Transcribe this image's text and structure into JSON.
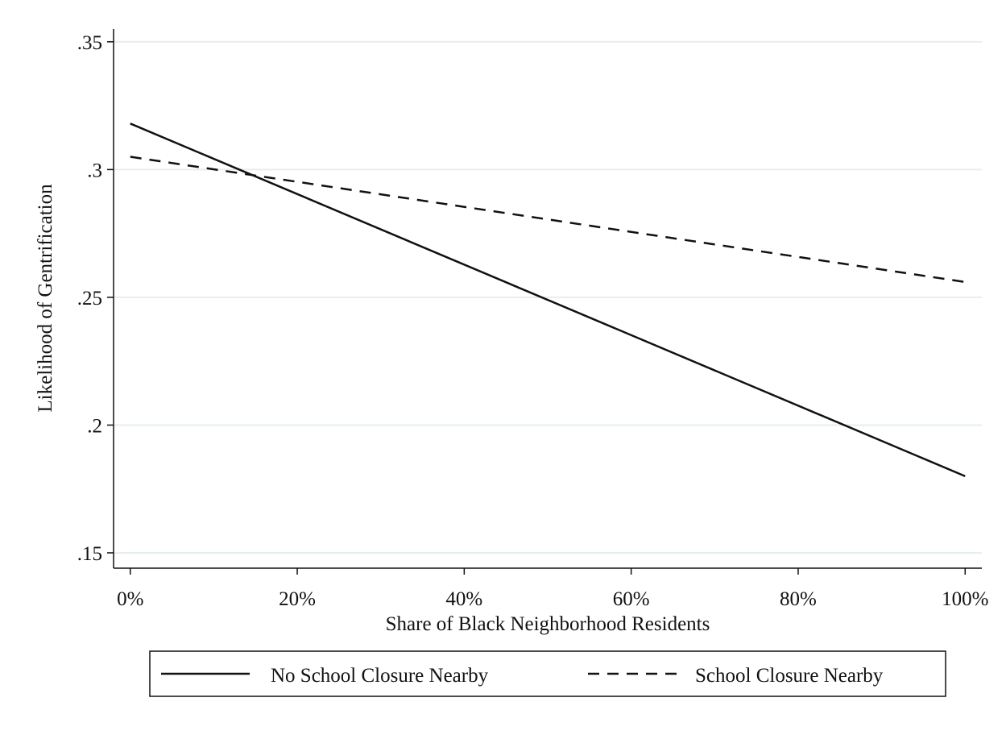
{
  "chart_data": {
    "type": "line",
    "xlabel": "Share of Black Neighborhood Residents",
    "ylabel": "Likelihood of Gentrification",
    "x_ticks": [
      "0%",
      "20%",
      "40%",
      "60%",
      "80%",
      "100%"
    ],
    "x_tick_values": [
      0,
      20,
      40,
      60,
      80,
      100
    ],
    "y_ticks": [
      ".15",
      ".2",
      ".25",
      ".3",
      ".35"
    ],
    "y_tick_values": [
      0.15,
      0.2,
      0.25,
      0.3,
      0.35
    ],
    "xlim": [
      -2,
      102
    ],
    "ylim": [
      0.144,
      0.355
    ],
    "grid": "horizontal",
    "legend_position": "bottom",
    "series": [
      {
        "name": "No School Closure Nearby",
        "style": "solid",
        "x": [
          0,
          100
        ],
        "y": [
          0.318,
          0.18
        ]
      },
      {
        "name": "School Closure Nearby",
        "style": "dashed",
        "x": [
          0,
          100
        ],
        "y": [
          0.305,
          0.256
        ]
      }
    ],
    "colors": {
      "line": "#111111",
      "grid": "#e6eef0",
      "axis": "#111111",
      "legend_border": "#111111"
    }
  }
}
